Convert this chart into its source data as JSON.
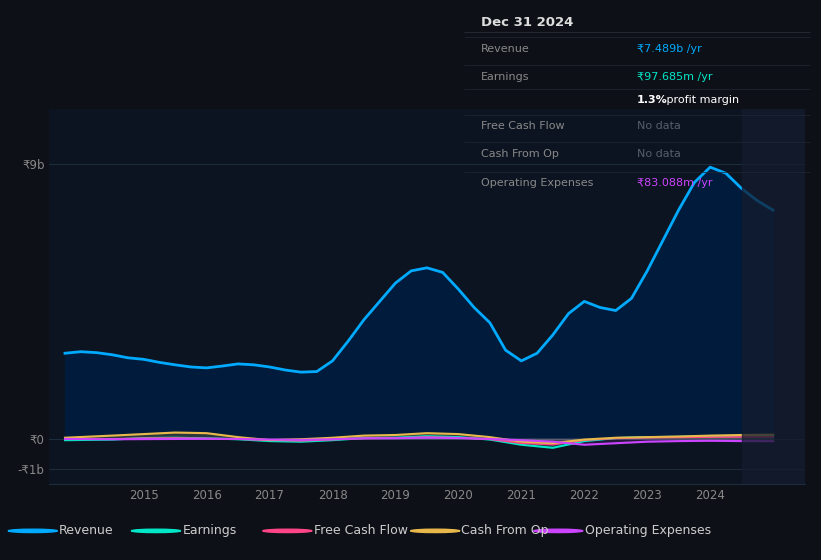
{
  "bg_color": "#0d1117",
  "chart_bg": "#0d1421",
  "panel_bg": "#0a0e14",
  "yticks": [
    "₹9b",
    "₹0",
    "-₹1b"
  ],
  "ytick_vals": [
    9000000000,
    0,
    -1000000000
  ],
  "ylim": [
    -1500000000,
    10800000000
  ],
  "xlim": [
    2013.5,
    2025.5
  ],
  "xtick_years": [
    2015,
    2016,
    2017,
    2018,
    2019,
    2020,
    2021,
    2022,
    2023,
    2024
  ],
  "revenue": {
    "x": [
      2013.75,
      2014.0,
      2014.25,
      2014.5,
      2014.75,
      2015.0,
      2015.25,
      2015.5,
      2015.75,
      2016.0,
      2016.25,
      2016.5,
      2016.75,
      2017.0,
      2017.25,
      2017.5,
      2017.75,
      2018.0,
      2018.25,
      2018.5,
      2018.75,
      2019.0,
      2019.25,
      2019.5,
      2019.75,
      2020.0,
      2020.25,
      2020.5,
      2020.75,
      2021.0,
      2021.25,
      2021.5,
      2021.75,
      2022.0,
      2022.25,
      2022.5,
      2022.75,
      2023.0,
      2023.25,
      2023.5,
      2023.75,
      2024.0,
      2024.25,
      2024.5,
      2024.75,
      2025.0
    ],
    "y": [
      2800000000,
      2850000000,
      2820000000,
      2750000000,
      2650000000,
      2600000000,
      2500000000,
      2420000000,
      2350000000,
      2320000000,
      2380000000,
      2450000000,
      2420000000,
      2350000000,
      2250000000,
      2180000000,
      2200000000,
      2550000000,
      3200000000,
      3900000000,
      4500000000,
      5100000000,
      5500000000,
      5600000000,
      5450000000,
      4900000000,
      4300000000,
      3800000000,
      2900000000,
      2550000000,
      2800000000,
      3400000000,
      4100000000,
      4500000000,
      4300000000,
      4200000000,
      4600000000,
      5500000000,
      6500000000,
      7500000000,
      8400000000,
      8900000000,
      8700000000,
      8200000000,
      7800000000,
      7489000000
    ],
    "color": "#00aaff",
    "label": "Revenue",
    "lw": 2.0
  },
  "earnings": {
    "x": [
      2013.75,
      2014.5,
      2015.0,
      2015.5,
      2016.0,
      2016.5,
      2017.0,
      2017.5,
      2018.0,
      2018.5,
      2019.0,
      2019.5,
      2020.0,
      2020.5,
      2021.0,
      2021.5,
      2022.0,
      2022.5,
      2023.0,
      2023.5,
      2024.0,
      2024.5,
      2025.0
    ],
    "y": [
      -50000000,
      -30000000,
      20000000,
      30000000,
      10000000,
      -20000000,
      -80000000,
      -100000000,
      -50000000,
      20000000,
      30000000,
      80000000,
      50000000,
      -30000000,
      -200000000,
      -300000000,
      -80000000,
      20000000,
      50000000,
      60000000,
      80000000,
      90000000,
      97685000
    ],
    "color": "#00e8c8",
    "label": "Earnings",
    "lw": 1.5
  },
  "free_cash_flow": {
    "x": [
      2013.75,
      2014.5,
      2015.0,
      2015.5,
      2016.0,
      2016.5,
      2017.0,
      2017.5,
      2018.0,
      2018.5,
      2019.0,
      2019.5,
      2020.0,
      2020.5,
      2021.0,
      2021.5,
      2022.0,
      2022.5,
      2023.0,
      2023.5,
      2024.0,
      2024.5,
      2025.0
    ],
    "y": [
      -20000000,
      -10000000,
      15000000,
      20000000,
      5000000,
      -15000000,
      -50000000,
      -70000000,
      -30000000,
      10000000,
      20000000,
      50000000,
      30000000,
      -20000000,
      -150000000,
      -200000000,
      -50000000,
      10000000,
      30000000,
      40000000,
      50000000,
      55000000,
      60000000
    ],
    "color": "#ff4488",
    "label": "Free Cash Flow",
    "lw": 1.2
  },
  "cash_from_op": {
    "x": [
      2013.75,
      2014.5,
      2015.0,
      2015.5,
      2016.0,
      2016.5,
      2017.0,
      2017.5,
      2018.0,
      2018.5,
      2019.0,
      2019.5,
      2020.0,
      2020.5,
      2021.0,
      2021.5,
      2022.0,
      2022.5,
      2023.0,
      2023.5,
      2024.0,
      2024.5,
      2025.0
    ],
    "y": [
      30000000,
      100000000,
      150000000,
      200000000,
      180000000,
      50000000,
      -50000000,
      -20000000,
      30000000,
      100000000,
      120000000,
      180000000,
      150000000,
      50000000,
      -100000000,
      -150000000,
      -30000000,
      30000000,
      50000000,
      70000000,
      100000000,
      120000000,
      130000000
    ],
    "color": "#e8b84b",
    "label": "Cash From Op",
    "lw": 1.5
  },
  "op_expenses": {
    "x": [
      2013.75,
      2014.5,
      2015.0,
      2015.5,
      2016.0,
      2016.5,
      2017.0,
      2017.5,
      2018.0,
      2018.5,
      2019.0,
      2019.5,
      2020.0,
      2020.5,
      2021.0,
      2021.5,
      2022.0,
      2022.5,
      2023.0,
      2023.5,
      2024.0,
      2024.5,
      2025.0
    ],
    "y": [
      -10000000,
      -20000000,
      -15000000,
      -10000000,
      -5000000,
      -10000000,
      -30000000,
      -40000000,
      -20000000,
      10000000,
      15000000,
      30000000,
      20000000,
      -10000000,
      -50000000,
      -100000000,
      -200000000,
      -150000000,
      -100000000,
      -80000000,
      -70000000,
      -80000000,
      -83088000
    ],
    "color": "#cc44ff",
    "label": "Operating Expenses",
    "lw": 1.5
  },
  "legend_items": [
    {
      "label": "Revenue",
      "color": "#00aaff"
    },
    {
      "label": "Earnings",
      "color": "#00e8c8"
    },
    {
      "label": "Free Cash Flow",
      "color": "#ff4488"
    },
    {
      "label": "Cash From Op",
      "color": "#e8b84b"
    },
    {
      "label": "Operating Expenses",
      "color": "#cc44ff"
    }
  ],
  "panel": {
    "date": "Dec 31 2024",
    "rows": [
      {
        "label": "Revenue",
        "value": "₹7.489b /yr",
        "value_color": "#00aaff"
      },
      {
        "label": "Earnings",
        "value": "₹97.685m /yr",
        "value_color": "#00e8c8"
      },
      {
        "label": "",
        "value": "1.3% profit margin",
        "value_color": "#ffffff",
        "bold_part": "1.3%"
      },
      {
        "label": "Free Cash Flow",
        "value": "No data",
        "value_color": "#555e6a"
      },
      {
        "label": "Cash From Op",
        "value": "No data",
        "value_color": "#555e6a"
      },
      {
        "label": "Operating Expenses",
        "value": "₹83.088m /yr",
        "value_color": "#cc44ff"
      }
    ]
  }
}
